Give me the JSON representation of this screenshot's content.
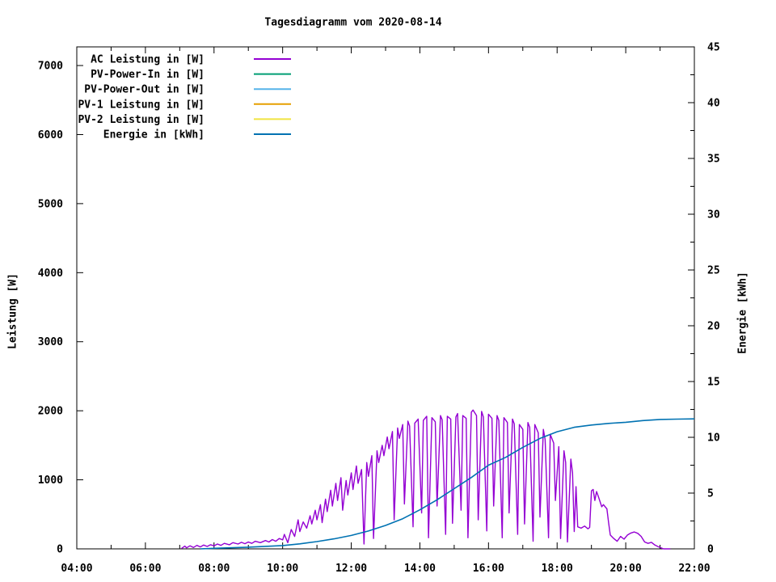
{
  "title": "Tagesdiagramm vom 2020-08-14",
  "chart_data": {
    "type": "line",
    "title": "Tagesdiagramm vom 2020-08-14",
    "grid": false,
    "legend_position": "top-left-inside",
    "x_axis": {
      "range_hours": [
        4,
        22
      ],
      "ticks": [
        {
          "h": 4,
          "label": "04:00"
        },
        {
          "h": 6,
          "label": "06:00"
        },
        {
          "h": 8,
          "label": "08:00"
        },
        {
          "h": 10,
          "label": "10:00"
        },
        {
          "h": 12,
          "label": "12:00"
        },
        {
          "h": 14,
          "label": "14:00"
        },
        {
          "h": 16,
          "label": "16:00"
        },
        {
          "h": 18,
          "label": "18:00"
        },
        {
          "h": 20,
          "label": "20:00"
        },
        {
          "h": 22,
          "label": "22:00"
        }
      ],
      "minor_hours": [
        5,
        7,
        9,
        11,
        13,
        15,
        17,
        19,
        21
      ]
    },
    "y_left": {
      "label": "Leistung [W]",
      "range": [
        0,
        7270
      ],
      "ticks": [
        {
          "v": 0,
          "label": "0"
        },
        {
          "v": 1000,
          "label": "1000"
        },
        {
          "v": 2000,
          "label": "2000"
        },
        {
          "v": 3000,
          "label": "3000"
        },
        {
          "v": 4000,
          "label": "4000"
        },
        {
          "v": 5000,
          "label": "5000"
        },
        {
          "v": 6000,
          "label": "6000"
        },
        {
          "v": 7000,
          "label": "7000"
        }
      ]
    },
    "y_right": {
      "label": "Energie [kWh]",
      "range": [
        0,
        45
      ],
      "ticks": [
        {
          "v": 0,
          "label": "0"
        },
        {
          "v": 5,
          "label": "5"
        },
        {
          "v": 10,
          "label": "10"
        },
        {
          "v": 15,
          "label": "15"
        },
        {
          "v": 20,
          "label": "20"
        },
        {
          "v": 25,
          "label": "25"
        },
        {
          "v": 30,
          "label": "30"
        },
        {
          "v": 35,
          "label": "35"
        },
        {
          "v": 40,
          "label": "40"
        },
        {
          "v": 45,
          "label": "45"
        }
      ],
      "minor": [
        2.5,
        7.5,
        12.5,
        17.5,
        22.5,
        27.5,
        32.5,
        37.5,
        42.5
      ]
    },
    "series": [
      {
        "name": "AC Leistung in [W]",
        "slug": "ac-leistung",
        "color": "#9400d3",
        "axis": "left",
        "points": [
          [
            7.05,
            5
          ],
          [
            7.15,
            40
          ],
          [
            7.2,
            15
          ],
          [
            7.3,
            45
          ],
          [
            7.4,
            20
          ],
          [
            7.5,
            50
          ],
          [
            7.6,
            28
          ],
          [
            7.7,
            55
          ],
          [
            7.8,
            35
          ],
          [
            7.9,
            60
          ],
          [
            8.0,
            45
          ],
          [
            8.1,
            70
          ],
          [
            8.2,
            50
          ],
          [
            8.3,
            80
          ],
          [
            8.45,
            60
          ],
          [
            8.55,
            90
          ],
          [
            8.7,
            70
          ],
          [
            8.8,
            95
          ],
          [
            8.9,
            75
          ],
          [
            9.0,
            100
          ],
          [
            9.1,
            80
          ],
          [
            9.2,
            110
          ],
          [
            9.35,
            90
          ],
          [
            9.5,
            120
          ],
          [
            9.6,
            100
          ],
          [
            9.7,
            135
          ],
          [
            9.8,
            110
          ],
          [
            9.9,
            150
          ],
          [
            10.0,
            130
          ],
          [
            10.05,
            210
          ],
          [
            10.15,
            90
          ],
          [
            10.25,
            280
          ],
          [
            10.35,
            180
          ],
          [
            10.45,
            420
          ],
          [
            10.5,
            250
          ],
          [
            10.6,
            390
          ],
          [
            10.7,
            300
          ],
          [
            10.8,
            480
          ],
          [
            10.85,
            360
          ],
          [
            10.95,
            560
          ],
          [
            11.0,
            420
          ],
          [
            11.1,
            640
          ],
          [
            11.15,
            380
          ],
          [
            11.25,
            720
          ],
          [
            11.3,
            540
          ],
          [
            11.4,
            850
          ],
          [
            11.45,
            620
          ],
          [
            11.55,
            950
          ],
          [
            11.6,
            700
          ],
          [
            11.7,
            1030
          ],
          [
            11.75,
            560
          ],
          [
            11.85,
            990
          ],
          [
            11.9,
            780
          ],
          [
            12.0,
            1100
          ],
          [
            12.05,
            860
          ],
          [
            12.15,
            1200
          ],
          [
            12.2,
            950
          ],
          [
            12.3,
            1150
          ],
          [
            12.37,
            70
          ],
          [
            12.45,
            1250
          ],
          [
            12.5,
            1050
          ],
          [
            12.6,
            1350
          ],
          [
            12.65,
            150
          ],
          [
            12.75,
            1420
          ],
          [
            12.8,
            1250
          ],
          [
            12.9,
            1500
          ],
          [
            12.95,
            1350
          ],
          [
            13.05,
            1620
          ],
          [
            13.1,
            1450
          ],
          [
            13.2,
            1700
          ],
          [
            13.25,
            420
          ],
          [
            13.35,
            1750
          ],
          [
            13.4,
            1600
          ],
          [
            13.5,
            1800
          ],
          [
            13.55,
            650
          ],
          [
            13.65,
            1850
          ],
          [
            13.7,
            1780
          ],
          [
            13.8,
            320
          ],
          [
            13.85,
            1820
          ],
          [
            13.95,
            1880
          ],
          [
            14.05,
            520
          ],
          [
            14.1,
            1860
          ],
          [
            14.2,
            1920
          ],
          [
            14.25,
            160
          ],
          [
            14.35,
            1900
          ],
          [
            14.45,
            1840
          ],
          [
            14.5,
            620
          ],
          [
            14.6,
            1930
          ],
          [
            14.65,
            1870
          ],
          [
            14.75,
            210
          ],
          [
            14.8,
            1920
          ],
          [
            14.9,
            1880
          ],
          [
            14.95,
            370
          ],
          [
            15.05,
            1910
          ],
          [
            15.1,
            1960
          ],
          [
            15.2,
            560
          ],
          [
            15.25,
            1930
          ],
          [
            15.35,
            1890
          ],
          [
            15.4,
            160
          ],
          [
            15.5,
            1980
          ],
          [
            15.55,
            2010
          ],
          [
            15.65,
            1930
          ],
          [
            15.7,
            420
          ],
          [
            15.8,
            1990
          ],
          [
            15.85,
            1910
          ],
          [
            15.95,
            260
          ],
          [
            16.0,
            1950
          ],
          [
            16.1,
            1890
          ],
          [
            16.15,
            620
          ],
          [
            16.25,
            1930
          ],
          [
            16.3,
            1860
          ],
          [
            16.4,
            160
          ],
          [
            16.45,
            1900
          ],
          [
            16.55,
            1830
          ],
          [
            16.6,
            520
          ],
          [
            16.7,
            1880
          ],
          [
            16.75,
            1810
          ],
          [
            16.85,
            210
          ],
          [
            16.9,
            1800
          ],
          [
            17.0,
            1730
          ],
          [
            17.05,
            360
          ],
          [
            17.15,
            1830
          ],
          [
            17.2,
            1760
          ],
          [
            17.3,
            110
          ],
          [
            17.35,
            1800
          ],
          [
            17.45,
            1680
          ],
          [
            17.5,
            460
          ],
          [
            17.6,
            1730
          ],
          [
            17.65,
            1580
          ],
          [
            17.75,
            160
          ],
          [
            17.8,
            1660
          ],
          [
            17.9,
            1530
          ],
          [
            17.95,
            700
          ],
          [
            18.05,
            1480
          ],
          [
            18.1,
            150
          ],
          [
            18.2,
            1420
          ],
          [
            18.25,
            1250
          ],
          [
            18.3,
            100
          ],
          [
            18.4,
            1300
          ],
          [
            18.45,
            1100
          ],
          [
            18.5,
            250
          ],
          [
            18.55,
            900
          ],
          [
            18.6,
            320
          ],
          [
            18.7,
            300
          ],
          [
            18.8,
            330
          ],
          [
            18.9,
            290
          ],
          [
            18.95,
            310
          ],
          [
            19.0,
            840
          ],
          [
            19.05,
            860
          ],
          [
            19.1,
            700
          ],
          [
            19.15,
            830
          ],
          [
            19.2,
            760
          ],
          [
            19.3,
            610
          ],
          [
            19.35,
            640
          ],
          [
            19.45,
            580
          ],
          [
            19.5,
            380
          ],
          [
            19.55,
            200
          ],
          [
            19.65,
            150
          ],
          [
            19.75,
            110
          ],
          [
            19.85,
            180
          ],
          [
            19.95,
            140
          ],
          [
            20.05,
            200
          ],
          [
            20.15,
            230
          ],
          [
            20.25,
            245
          ],
          [
            20.35,
            225
          ],
          [
            20.45,
            180
          ],
          [
            20.55,
            100
          ],
          [
            20.65,
            80
          ],
          [
            20.75,
            95
          ],
          [
            20.85,
            55
          ],
          [
            20.95,
            30
          ],
          [
            21.05,
            10
          ],
          [
            21.1,
            0
          ],
          [
            21.3,
            0
          ]
        ]
      },
      {
        "name": "PV-Power-In in [W]",
        "slug": "pv-power-in",
        "color": "#009e73",
        "axis": "left",
        "points": []
      },
      {
        "name": "PV-Power-Out in [W]",
        "slug": "pv-power-out",
        "color": "#56b4e9",
        "axis": "left",
        "points": []
      },
      {
        "name": "PV-1 Leistung in [W]",
        "slug": "pv-1-leistung",
        "color": "#e69f00",
        "axis": "left",
        "points": []
      },
      {
        "name": "PV-2 Leistung in [W]",
        "slug": "pv-2-leistung",
        "color": "#f0e442",
        "axis": "left",
        "points": []
      },
      {
        "name": "Energie in [kWh]",
        "slug": "energie",
        "color": "#0072b2",
        "axis": "right",
        "points": [
          [
            7.6,
            0
          ],
          [
            8.0,
            0.05
          ],
          [
            9.0,
            0.15
          ],
          [
            10.0,
            0.3
          ],
          [
            10.5,
            0.45
          ],
          [
            11.0,
            0.65
          ],
          [
            11.5,
            0.9
          ],
          [
            12.0,
            1.2
          ],
          [
            12.5,
            1.6
          ],
          [
            13.0,
            2.1
          ],
          [
            13.5,
            2.7
          ],
          [
            14.0,
            3.5
          ],
          [
            14.5,
            4.4
          ],
          [
            15.0,
            5.4
          ],
          [
            15.5,
            6.4
          ],
          [
            16.0,
            7.5
          ],
          [
            16.5,
            8.2
          ],
          [
            17.0,
            9.1
          ],
          [
            17.5,
            9.9
          ],
          [
            18.0,
            10.5
          ],
          [
            18.5,
            10.9
          ],
          [
            19.0,
            11.1
          ],
          [
            19.5,
            11.25
          ],
          [
            20.0,
            11.35
          ],
          [
            20.5,
            11.5
          ],
          [
            21.0,
            11.6
          ],
          [
            21.5,
            11.63
          ],
          [
            22.0,
            11.65
          ]
        ]
      }
    ]
  }
}
